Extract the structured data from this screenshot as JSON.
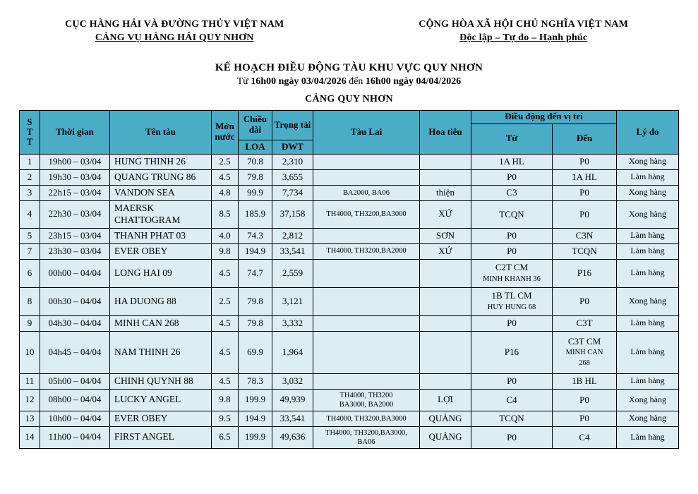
{
  "colors": {
    "header_bg": "#4BACC6",
    "row_bg": "#DCEDF3",
    "border": "#000000"
  },
  "letterhead": {
    "left": {
      "line1": "CỤC HÀNG HẢI VÀ ĐƯỜNG THỦY VIỆT NAM",
      "line2": "CẢNG VỤ HÀNG HẢI QUY NHƠN"
    },
    "right": {
      "line1": "CỘNG HÒA XÃ HỘI CHỦ NGHĨA VIỆT NAM",
      "line2": "Độc lập – Tự do – Hạnh phúc"
    }
  },
  "title_block": {
    "title": "KẾ HOẠCH ĐIỀU ĐỘNG TÀU KHU VỰC QUY NHƠN",
    "subtitle": {
      "prefix": "Từ ",
      "period1": "16h00 ngày 03/04/2026",
      "connector": " đến ",
      "period2": "16h00 ngày 04/04/2026"
    },
    "section": "CẢNG QUY NHƠN"
  },
  "table": {
    "headers": {
      "stt": "S\nT\nT",
      "time": "Thời gian",
      "name": "Tên tàu",
      "draft": "Mớn nước",
      "length": "Chiều dài",
      "loa": "LOA",
      "tonnage": "Trọng tải",
      "dwt": "DWT",
      "tugs": "Tàu Lai",
      "pilot": "Hoa tiêu",
      "movement": "Điều động đến vị trí",
      "from": "Từ",
      "to": "Đến",
      "reason": "Lý do"
    },
    "rows": [
      {
        "stt": "1",
        "time": "19h00 – 03/04",
        "name": "HUNG THINH 26",
        "draft": "2.5",
        "loa": "70.8",
        "dwt": "2,310",
        "tugs": "",
        "pilot": "",
        "from": {
          "main": "1A HL"
        },
        "to": {
          "main": "P0"
        },
        "reason": "Xong hàng",
        "h": ""
      },
      {
        "stt": "2",
        "time": "19h30 – 03/04",
        "name": "QUANG TRUNG 86",
        "draft": "4.5",
        "loa": "79.8",
        "dwt": "3,655",
        "tugs": "",
        "pilot": "",
        "from": {
          "main": "P0"
        },
        "to": {
          "main": "1A HL"
        },
        "reason": "Làm hàng",
        "h": ""
      },
      {
        "stt": "3",
        "time": "22h15 – 03/04",
        "name": "VANDON SEA",
        "draft": "4.8",
        "loa": "99.9",
        "dwt": "7,734",
        "tugs": "BA2000, BA06",
        "pilot": "thiện",
        "from": {
          "main": "C3"
        },
        "to": {
          "main": "P0"
        },
        "reason": "Xong hàng",
        "h": ""
      },
      {
        "stt": "4",
        "time": "22h30 – 03/04",
        "name": "MAERSK CHATTOGRAM",
        "draft": "8.5",
        "loa": "185.9",
        "dwt": "37,158",
        "tugs": "TH4000, TH3200,BA3000",
        "pilot": "XỨ",
        "from": {
          "main": "TCQN"
        },
        "to": {
          "main": "P0"
        },
        "reason": "Xong hàng",
        "h": "tall34"
      },
      {
        "stt": "5",
        "time": "23h15 – 03/04",
        "name": "THANH PHAT 03",
        "draft": "4.0",
        "loa": "74.3",
        "dwt": "2,812",
        "tugs": "",
        "pilot": "SƠN",
        "from": {
          "main": "P0"
        },
        "to": {
          "main": "C3N"
        },
        "reason": "Làm hàng",
        "h": ""
      },
      {
        "stt": "7",
        "time": "23h30 – 03/04",
        "name": "EVER OBEY",
        "draft": "9.8",
        "loa": "194.9",
        "dwt": "33,541",
        "tugs": "TH4000, TH3200,BA2000",
        "pilot": "XỨ",
        "from": {
          "main": "P0"
        },
        "to": {
          "main": "TCQN"
        },
        "reason": "Làm hàng",
        "h": ""
      },
      {
        "stt": "6",
        "time": "00h00 – 04/04",
        "name": "LONG HAI 09",
        "draft": "4.5",
        "loa": "74.7",
        "dwt": "2,559",
        "tugs": "",
        "pilot": "",
        "from": {
          "main": "C2T CM",
          "sub": "MINH KHANH 36"
        },
        "to": {
          "main": "P16"
        },
        "reason": "Làm hàng",
        "h": "tall40"
      },
      {
        "stt": "8",
        "time": "00h30 – 04/04",
        "name": "HA DUONG 88",
        "draft": "2.5",
        "loa": "79.8",
        "dwt": "3,121",
        "tugs": "",
        "pilot": "",
        "from": {
          "main": "1B TL CM",
          "sub": "HUY HUNG 68"
        },
        "to": {
          "main": "P0"
        },
        "reason": "Xong hàng",
        "h": "tall40"
      },
      {
        "stt": "9",
        "time": "04h30 – 04/04",
        "name": "MINH CAN 268",
        "draft": "4.5",
        "loa": "79.8",
        "dwt": "3,332",
        "tugs": "",
        "pilot": "",
        "from": {
          "main": "P0"
        },
        "to": {
          "main": "C3T"
        },
        "reason": "Làm hàng",
        "h": ""
      },
      {
        "stt": "10",
        "time": "04h45 – 04/04",
        "name": "NAM THINH 26",
        "draft": "4.5",
        "loa": "69.9",
        "dwt": "1,964",
        "tugs": "",
        "pilot": "",
        "from": {
          "main": "P16"
        },
        "to": {
          "main": "C3T CM",
          "sub": "MINH CAN\n268"
        },
        "reason": "Làm hàng",
        "h": "tall60"
      },
      {
        "stt": "11",
        "time": "05h00 – 04/04",
        "name": "CHINH QUYNH 88",
        "draft": "4.5",
        "loa": "78.3",
        "dwt": "3,032",
        "tugs": "",
        "pilot": "",
        "from": {
          "main": "P0"
        },
        "to": {
          "main": "1B HL"
        },
        "reason": "Làm hàng",
        "h": ""
      },
      {
        "stt": "12",
        "time": "08h00 – 04/04",
        "name": "LUCKY ANGEL",
        "draft": "9.8",
        "loa": "199.9",
        "dwt": "49,939",
        "tugs": "TH4000, TH3200\nBA3000, BA2000",
        "pilot": "LỢI",
        "from": {
          "main": "C4"
        },
        "to": {
          "main": "P0"
        },
        "reason": "Xong hàng",
        "h": "tall28"
      },
      {
        "stt": "13",
        "time": "10h00 – 04/04",
        "name": "EVER OBEY",
        "draft": "9.5",
        "loa": "194.9",
        "dwt": "33,541",
        "tugs": "TH4000, TH3200,BA3000",
        "pilot": "QUẢNG",
        "from": {
          "main": "TCQN"
        },
        "to": {
          "main": "P0"
        },
        "reason": "Xong hàng",
        "h": ""
      },
      {
        "stt": "14",
        "time": "11h00 – 04/04",
        "name": "FIRST ANGEL",
        "draft": "6.5",
        "loa": "199.9",
        "dwt": "49,636",
        "tugs": "TH4000, TH3200,BA3000,\nBA06",
        "pilot": "QUẢNG",
        "from": {
          "main": "P0"
        },
        "to": {
          "main": "C4"
        },
        "reason": "Làm hàng",
        "h": "tall26"
      }
    ]
  }
}
